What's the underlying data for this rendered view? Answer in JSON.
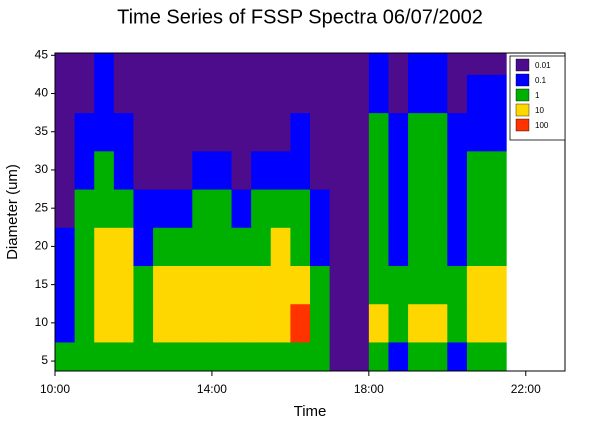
{
  "chart_data": {
    "type": "heatmap",
    "title": "Time Series of FSSP Spectra 06/07/2002",
    "x_label": "Time",
    "y_label": "Diameter (um)",
    "x": [
      10,
      10.5,
      11,
      11.5,
      12,
      12.5,
      13,
      13.5,
      14,
      14.5,
      15,
      15.5,
      16,
      16.5,
      17,
      17.5,
      18,
      18.5,
      19,
      19.5,
      20,
      20.5,
      21
    ],
    "y": [
      5,
      10,
      15,
      20,
      25,
      30,
      35,
      40,
      45
    ],
    "values": [
      [
        1,
        3,
        5,
        5,
        3,
        5,
        5,
        5,
        5,
        5,
        5,
        5,
        8,
        3,
        0.01,
        0.01,
        3,
        0.5,
        3,
        3,
        0.5,
        3,
        3
      ],
      [
        0.5,
        5,
        30,
        20,
        3,
        50,
        60,
        40,
        50,
        60,
        50,
        40,
        110,
        5,
        0.01,
        0.01,
        40,
        3,
        30,
        20,
        3,
        30,
        20
      ],
      [
        0.1,
        5,
        20,
        20,
        2,
        20,
        20,
        15,
        20,
        20,
        30,
        30,
        20,
        1,
        0.01,
        0.01,
        8,
        1,
        8,
        8,
        1,
        20,
        20
      ],
      [
        0.1,
        3,
        20,
        20,
        0.5,
        3,
        5,
        5,
        8,
        5,
        8,
        15,
        8,
        0.5,
        0.01,
        0.01,
        5,
        0.5,
        5,
        5,
        0.5,
        5,
        3
      ],
      [
        0.01,
        2,
        5,
        3,
        0.1,
        0.1,
        0.5,
        1,
        2,
        0.5,
        2,
        3,
        3,
        0.1,
        0.01,
        0.01,
        3,
        0.5,
        3,
        3,
        0.5,
        3,
        3
      ],
      [
        0.01,
        0.5,
        2,
        0.5,
        0.01,
        0.01,
        0.01,
        0.1,
        0.1,
        0.01,
        0.1,
        0.1,
        0.5,
        0.01,
        0.01,
        0.01,
        3,
        0.1,
        3,
        3,
        0.1,
        2,
        2
      ],
      [
        0.01,
        0.1,
        0.5,
        0.1,
        0.01,
        0.01,
        0.01,
        0.01,
        0.01,
        0.01,
        0.01,
        0.01,
        0.1,
        0.01,
        0.01,
        0.01,
        2,
        0.1,
        2,
        2,
        0.1,
        0.5,
        0.5
      ],
      [
        0.01,
        0.01,
        0.1,
        0.01,
        0.01,
        0.01,
        0.01,
        0.01,
        0.01,
        0.01,
        0.01,
        0.01,
        0.01,
        0.01,
        0.01,
        0.01,
        0.5,
        0.01,
        0.5,
        0.5,
        0.01,
        0.1,
        0.1
      ],
      [
        0.01,
        0.01,
        0.1,
        0.01,
        0.01,
        0.01,
        0.01,
        0.01,
        0.01,
        0.01,
        0.01,
        0.01,
        0.01,
        0.01,
        0.01,
        0.01,
        0.1,
        0.01,
        0.1,
        0.1,
        0.01,
        0.01,
        0.01
      ]
    ],
    "levels": [
      0.01,
      0.1,
      1,
      10,
      100
    ],
    "colors": [
      "#4c0c8c",
      "#0000ff",
      "#00b000",
      "#ffd700",
      "#ff3300"
    ],
    "xlim": [
      10,
      23
    ],
    "xticks": [
      {
        "value": 10,
        "label": "10:00"
      },
      {
        "value": 14,
        "label": "14:00"
      },
      {
        "value": 18,
        "label": "18:00"
      },
      {
        "value": 22,
        "label": "22:00"
      }
    ],
    "ylim": [
      3.7,
      45.3
    ],
    "yticks": [
      5,
      10,
      15,
      20,
      25,
      30,
      35,
      40,
      45
    ]
  }
}
